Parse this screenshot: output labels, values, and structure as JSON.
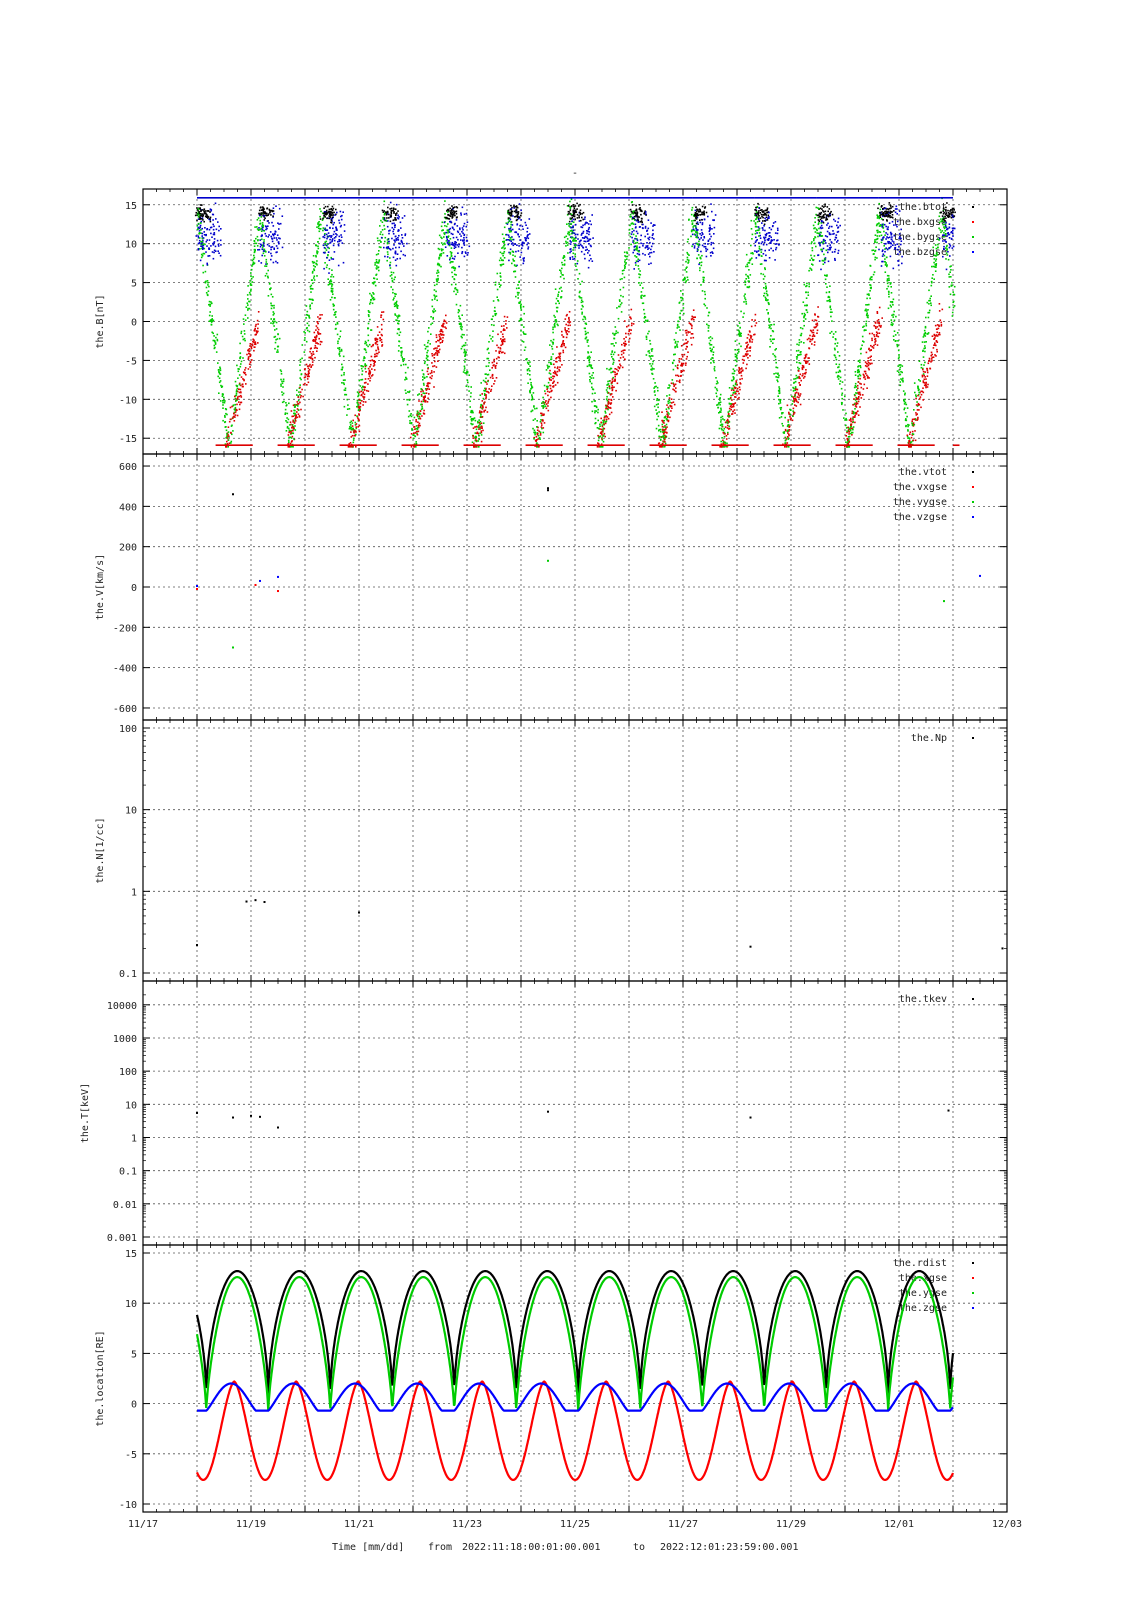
{
  "figure": {
    "top_mark": "-",
    "xlabel": "Time [mm/dd]",
    "range_from_label": "from",
    "range_from": "2022:11:18:00:01:00.001",
    "range_to_label": "to",
    "range_to": "2022:12:01:23:59:00.001",
    "x_tick_labels": [
      "11/17",
      "11/19",
      "11/21",
      "11/23",
      "11/25",
      "11/27",
      "11/29",
      "12/01",
      "12/03"
    ]
  },
  "chart_data": [
    {
      "type": "scatter",
      "ylabel": "the.B[nT]",
      "x_range_days": [
        "2022-11-17",
        "2022-12-03"
      ],
      "ylim": [
        -16,
        16
      ],
      "yscale": "linear",
      "y_ticks": [
        -15,
        -10,
        -5,
        0,
        5,
        10,
        15
      ],
      "grid": true,
      "legend_position": "top-right",
      "series": [
        {
          "name": "the.btot",
          "color": "#000000"
        },
        {
          "name": "the.bxgse",
          "color": "#ff0000"
        },
        {
          "name": "the.bygse",
          "color": "#00cc00"
        },
        {
          "name": "the.bzgse",
          "color": "#0000ff"
        }
      ],
      "note_values": "dense scattered magnetic field samples; bz mostly 5..16 nT (blue), bx -16..2 nT (red), by sweeps -16..16 nT (green), btot saturates at top"
    },
    {
      "type": "scatter",
      "ylabel": "the.V[km/s]",
      "ylim": [
        -620,
        620
      ],
      "yscale": "linear",
      "y_ticks": [
        -600,
        -400,
        -200,
        0,
        200,
        400,
        600
      ],
      "grid": true,
      "legend_position": "top-right",
      "series": [
        {
          "name": "the.vtot",
          "color": "#000000",
          "points": [
            [
              "2022-11-18 16:00",
              460
            ],
            [
              "2022-11-24 12:00",
              480
            ],
            [
              "2022-11-24 12:00",
              490
            ]
          ]
        },
        {
          "name": "the.vxgse",
          "color": "#ff0000",
          "points": [
            [
              "2022-11-18 00:00",
              -10
            ],
            [
              "2022-11-19 02:00",
              10
            ],
            [
              "2022-11-19 12:00",
              -20
            ]
          ]
        },
        {
          "name": "the.vygse",
          "color": "#00cc00",
          "points": [
            [
              "2022-11-18 16:00",
              -300
            ],
            [
              "2022-11-24 12:00",
              130
            ],
            [
              "2022-12-01 20:00",
              -70
            ]
          ]
        },
        {
          "name": "the.vzgse",
          "color": "#0000ff",
          "points": [
            [
              "2022-11-18 00:00",
              5
            ],
            [
              "2022-11-19 04:00",
              30
            ],
            [
              "2022-11-19 12:00",
              50
            ],
            [
              "2022-12-02 12:00",
              55
            ]
          ]
        }
      ]
    },
    {
      "type": "scatter",
      "ylabel": "the.N[1/cc]",
      "ylim": [
        0.1,
        100
      ],
      "yscale": "log",
      "y_ticks": [
        0.1,
        1,
        10,
        100
      ],
      "grid": true,
      "legend_position": "top-right",
      "series": [
        {
          "name": "the.Np",
          "color": "#000000",
          "points": [
            [
              "2022-11-18 00:00",
              0.22
            ],
            [
              "2022-11-18 22:00",
              0.75
            ],
            [
              "2022-11-19 02:00",
              0.78
            ],
            [
              "2022-11-19 06:00",
              0.74
            ],
            [
              "2022-11-21 00:00",
              0.55
            ],
            [
              "2022-11-28 06:00",
              0.21
            ],
            [
              "2022-12-02 22:00",
              0.2
            ]
          ]
        }
      ]
    },
    {
      "type": "scatter",
      "ylabel": "the.T[keV]",
      "ylim": [
        0.001,
        30000
      ],
      "yscale": "log",
      "y_ticks": [
        0.001,
        0.01,
        0.1,
        1,
        10,
        100,
        1000,
        10000
      ],
      "y_tick_labels": [
        "0.001",
        "0.01",
        "0.1",
        "1",
        "10",
        "100",
        "1000",
        "10000"
      ],
      "grid": true,
      "legend_position": "top-right",
      "series": [
        {
          "name": "the.tkev",
          "color": "#000000",
          "points": [
            [
              "2022-11-18 00:00",
              5.5
            ],
            [
              "2022-11-18 16:00",
              4
            ],
            [
              "2022-11-19 00:00",
              4.5
            ],
            [
              "2022-11-19 04:00",
              4.2
            ],
            [
              "2022-11-19 12:00",
              2
            ],
            [
              "2022-11-24 12:00",
              6
            ],
            [
              "2022-11-28 06:00",
              4
            ],
            [
              "2022-12-01 22:00",
              6.5
            ]
          ]
        }
      ]
    },
    {
      "type": "line",
      "ylabel": "the.location[RE]",
      "ylim": [
        -10,
        15
      ],
      "yscale": "linear",
      "y_ticks": [
        -10,
        -5,
        0,
        5,
        10,
        15
      ],
      "grid": true,
      "legend_position": "top-right",
      "x_start": "2022-11-18 00:00",
      "x_end": "2022-12-01 24:00",
      "orbit_period_days": 1.148,
      "series": [
        {
          "name": "the.rdist",
          "color": "#000000",
          "perigee": 0.8,
          "apogee": 13.2
        },
        {
          "name": "the.xgse",
          "color": "#ff0000",
          "min": -7.6,
          "max": 2.2
        },
        {
          "name": "the.ygse",
          "color": "#00cc00",
          "min": -0.8,
          "max": 12.6
        },
        {
          "name": "the.zgse",
          "color": "#0000ff",
          "min": -0.7,
          "max": 2.0
        }
      ]
    }
  ]
}
